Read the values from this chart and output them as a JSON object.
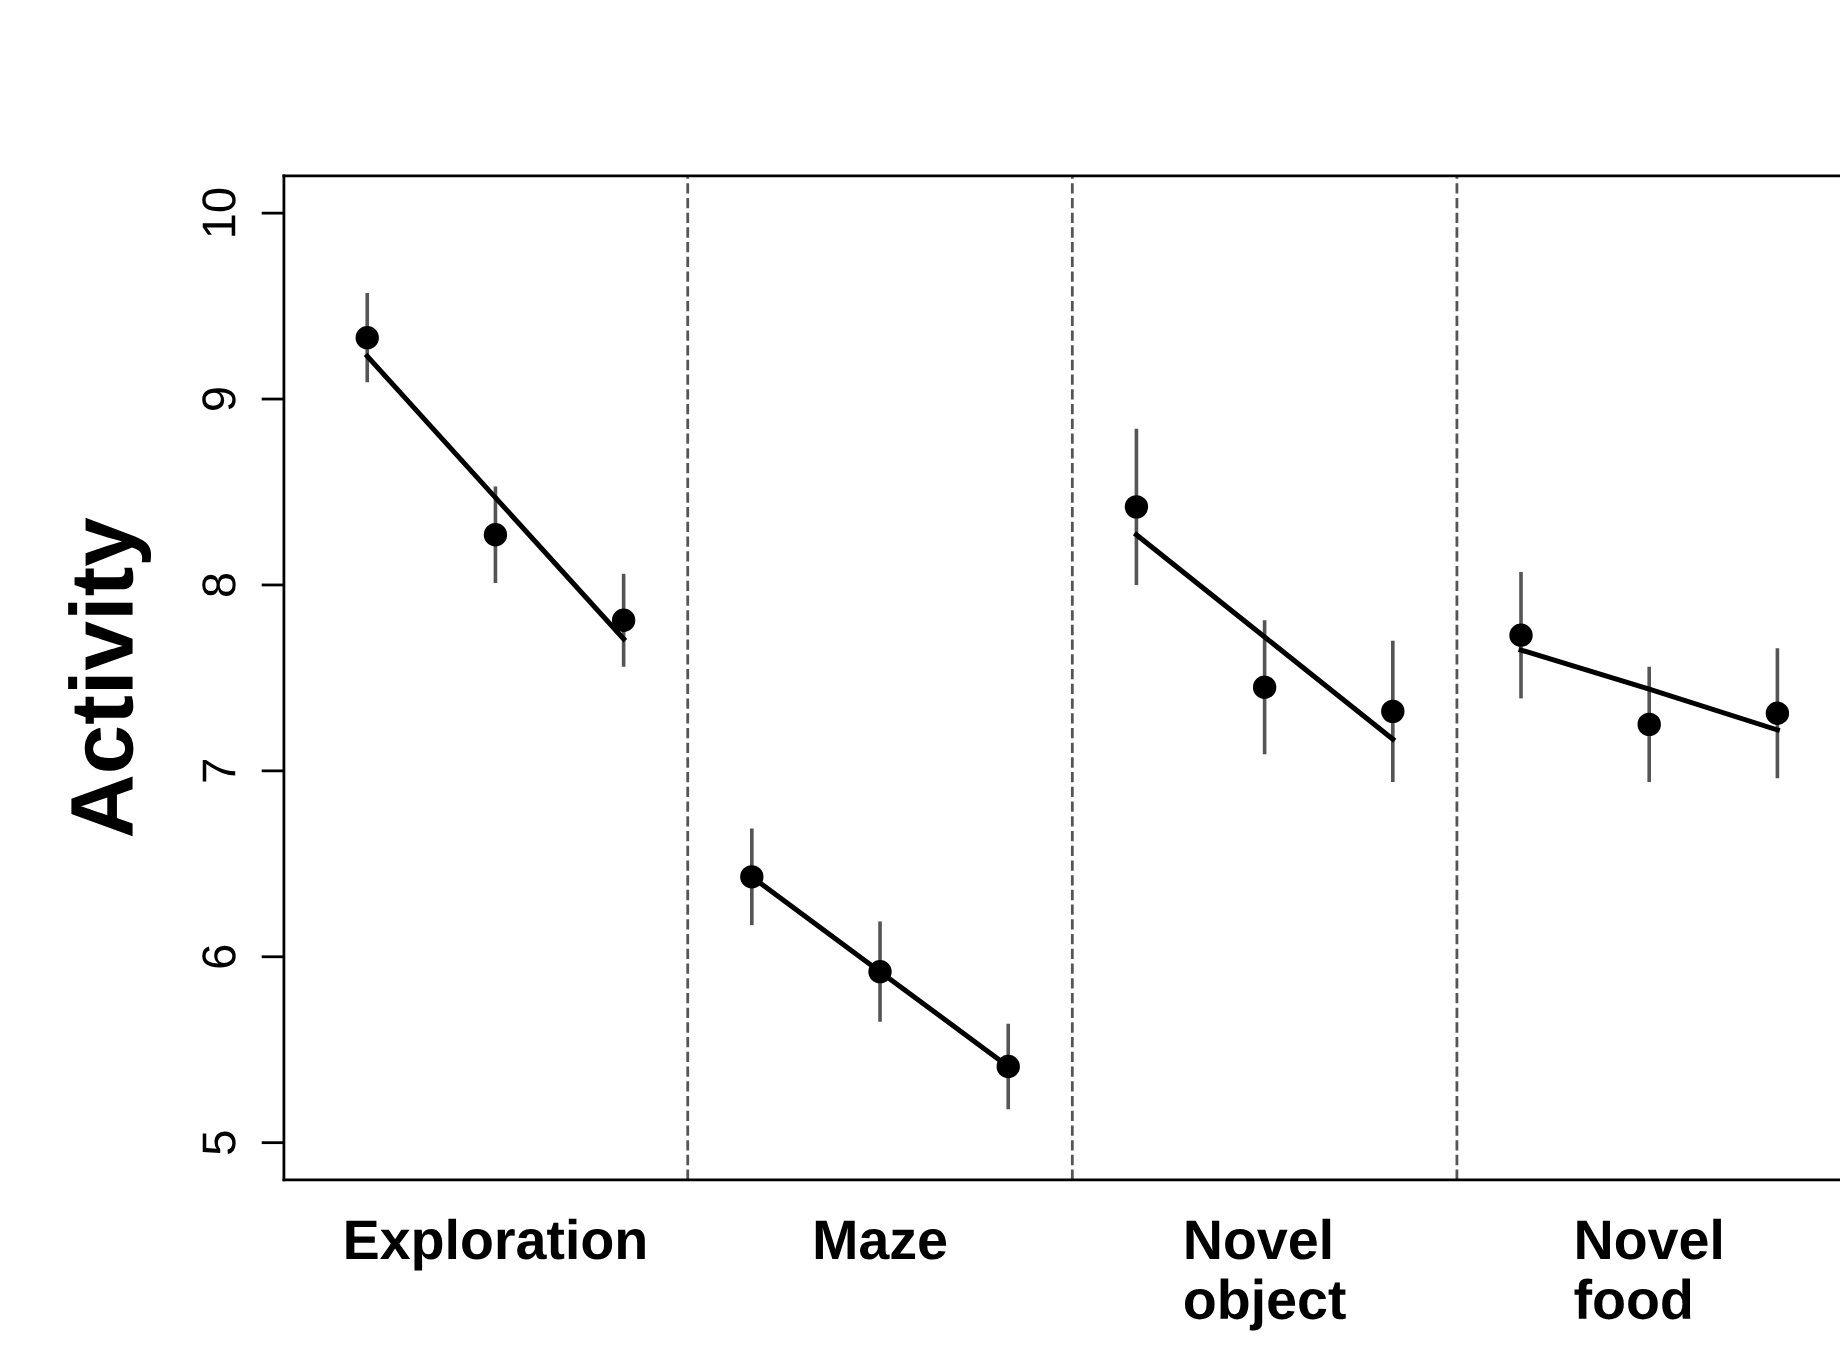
{
  "chart_data": {
    "type": "scatter",
    "ylabel": "Activity",
    "categories": [
      null,
      "Exploration",
      null,
      null,
      "Maze",
      null,
      null,
      "Novel\nobject",
      null,
      null,
      "Novel\nfood",
      null
    ],
    "ylim": [
      4.8,
      10.2
    ],
    "yticks": [
      5,
      6,
      7,
      8,
      9,
      10
    ],
    "grid": false,
    "series": [
      {
        "color": "#000000",
        "marker": "circle",
        "values": [
          9.33,
          8.27,
          7.81,
          6.43,
          5.92,
          5.41,
          8.42,
          7.45,
          7.32,
          7.73,
          7.25,
          7.31
        ],
        "errors": [
          0.24,
          0.26,
          0.25,
          0.26,
          0.27,
          0.23,
          0.42,
          0.36,
          0.38,
          0.34,
          0.31,
          0.35
        ]
      },
      {
        "type": "line",
        "color": "#000000",
        "values": [
          9.23,
          8.47,
          7.71,
          null,
          null,
          null,
          null,
          null,
          null,
          null,
          null,
          null
        ]
      },
      {
        "type": "line",
        "color": "#000000",
        "values": [
          null,
          null,
          null,
          6.43,
          5.92,
          5.41,
          null,
          null,
          null,
          null,
          null,
          null
        ]
      },
      {
        "type": "line",
        "color": "#000000",
        "values": [
          null,
          null,
          null,
          null,
          null,
          null,
          8.27,
          7.72,
          7.17,
          null,
          null,
          null
        ]
      },
      {
        "type": "line",
        "color": "#000000",
        "values": [
          null,
          null,
          null,
          null,
          null,
          null,
          null,
          null,
          null,
          7.65,
          7.44,
          7.22
        ]
      }
    ]
  }
}
